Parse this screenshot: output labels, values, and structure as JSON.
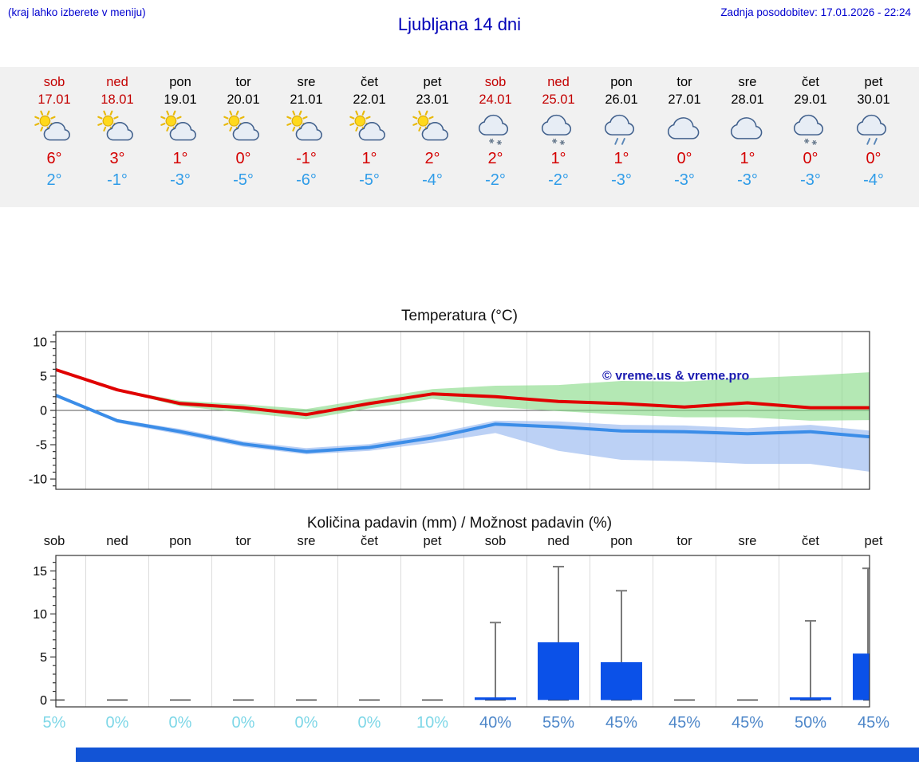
{
  "header": {
    "note": "(kraj lahko izberete v meniju)",
    "title": "Ljubljana 14 dni",
    "updated": "Zadnja posodobitev: 17.01.2026 - 22:24"
  },
  "colors": {
    "accent_blue": "#0000cf",
    "weekend_red": "#c30000",
    "high_red": "#d40000",
    "low_blue": "#2f9ce8",
    "bar_blue": "#0b51e8",
    "whisker_gray": "#7a7a7a",
    "percent_low": "#7ed7e7",
    "percent_high": "#4e87c9",
    "watermark_blue": "#1b1bb0",
    "footer_bar": "#1254d6",
    "max_band_green": "#82d882",
    "min_band_blue": "#8fb2ee"
  },
  "forecast_strip": {
    "days": [
      {
        "name": "sob",
        "date": "17.01",
        "weekend": true,
        "icon": "sun-cloud-icon",
        "high": "6°",
        "low": "2°"
      },
      {
        "name": "ned",
        "date": "18.01",
        "weekend": true,
        "icon": "sun-cloud-icon",
        "high": "3°",
        "low": "-1°"
      },
      {
        "name": "pon",
        "date": "19.01",
        "weekend": false,
        "icon": "sun-cloud-icon",
        "high": "1°",
        "low": "-3°"
      },
      {
        "name": "tor",
        "date": "20.01",
        "weekend": false,
        "icon": "sun-cloud-icon",
        "high": "0°",
        "low": "-5°"
      },
      {
        "name": "sre",
        "date": "21.01",
        "weekend": false,
        "icon": "sun-cloud-icon",
        "high": "-1°",
        "low": "-6°"
      },
      {
        "name": "čet",
        "date": "22.01",
        "weekend": false,
        "icon": "sun-cloud-icon",
        "high": "1°",
        "low": "-5°"
      },
      {
        "name": "pet",
        "date": "23.01",
        "weekend": false,
        "icon": "sun-cloud-icon",
        "high": "2°",
        "low": "-4°"
      },
      {
        "name": "sob",
        "date": "24.01",
        "weekend": true,
        "icon": "cloud-snow-icon",
        "high": "2°",
        "low": "-2°"
      },
      {
        "name": "ned",
        "date": "25.01",
        "weekend": true,
        "icon": "cloud-snow-icon",
        "high": "1°",
        "low": "-2°"
      },
      {
        "name": "pon",
        "date": "26.01",
        "weekend": false,
        "icon": "cloud-rain-icon",
        "high": "1°",
        "low": "-3°"
      },
      {
        "name": "tor",
        "date": "27.01",
        "weekend": false,
        "icon": "cloud-icon",
        "high": "0°",
        "low": "-3°"
      },
      {
        "name": "sre",
        "date": "28.01",
        "weekend": false,
        "icon": "cloud-icon",
        "high": "1°",
        "low": "-3°"
      },
      {
        "name": "čet",
        "date": "29.01",
        "weekend": false,
        "icon": "cloud-snow-icon",
        "high": "0°",
        "low": "-3°"
      },
      {
        "name": "pet",
        "date": "30.01",
        "weekend": false,
        "icon": "cloud-rain-icon",
        "high": "0°",
        "low": "-4°"
      }
    ]
  },
  "chart_data": [
    {
      "type": "line",
      "title": "Temperatura (°C)",
      "x_labels": [
        "sob",
        "ned",
        "pon",
        "tor",
        "sre",
        "čet",
        "pet",
        "sob",
        "ned",
        "pon",
        "tor",
        "sre",
        "čet",
        "pet"
      ],
      "ylim": [
        -11.5,
        11.5
      ],
      "yticks": [
        -10,
        -5,
        0,
        5,
        10
      ],
      "grid": "vertical-day-boundaries",
      "watermark": "© vreme.us & vreme.pro",
      "series": [
        {
          "name": "max temperature",
          "color": "#e00000",
          "values": [
            6,
            3,
            1,
            0.4,
            -0.6,
            1,
            2.4,
            2,
            1.3,
            1,
            0.5,
            1.1,
            0.4,
            0.4
          ]
        },
        {
          "name": "min temperature",
          "color": "#3b8de8",
          "values": [
            2.3,
            -1.5,
            -3.1,
            -4.9,
            -6,
            -5.4,
            -4,
            -2,
            -2.4,
            -3,
            -3.1,
            -3.4,
            -3.1,
            -3.9
          ]
        }
      ],
      "bands": [
        {
          "name": "max temperature range",
          "color": "#82d882",
          "upper": [
            6,
            3.1,
            1.4,
            0.9,
            0.2,
            1.7,
            3.1,
            3.6,
            3.7,
            4.3,
            4.2,
            4.7,
            5.1,
            5.6
          ],
          "lower": [
            6,
            2.9,
            0.6,
            -0.3,
            -1.3,
            0.3,
            1.7,
            0.5,
            -0.1,
            -0.6,
            -1,
            -1,
            -1.5,
            -1.4
          ]
        },
        {
          "name": "min temperature range",
          "color": "#8fb2ee",
          "upper": [
            2.3,
            -1.3,
            -2.7,
            -4.5,
            -5.5,
            -4.9,
            -3.4,
            -1.5,
            -1.6,
            -2.1,
            -2.2,
            -2.6,
            -2.1,
            -3
          ],
          "lower": [
            2.3,
            -1.8,
            -3.5,
            -5.3,
            -6.4,
            -5.9,
            -4.7,
            -3.3,
            -5.9,
            -7.2,
            -7.4,
            -7.8,
            -7.8,
            -9
          ]
        }
      ]
    },
    {
      "type": "bar",
      "title": "Količina padavin (mm) / Možnost padavin (%)",
      "x_labels": [
        "sob",
        "ned",
        "pon",
        "tor",
        "sre",
        "čet",
        "pet",
        "sob",
        "ned",
        "pon",
        "tor",
        "sre",
        "čet",
        "pet"
      ],
      "ylim": [
        -0.8,
        16.8
      ],
      "yticks": [
        0,
        5,
        10,
        15
      ],
      "ylabel": "",
      "values": [
        0,
        0,
        0,
        0,
        0,
        0,
        0,
        0.3,
        6.7,
        4.4,
        0,
        0,
        0.3,
        5.4
      ],
      "whisker_max": [
        0,
        0,
        0,
        0,
        0,
        0,
        0,
        9,
        15.5,
        12.7,
        0,
        0,
        9.2,
        15.3
      ],
      "percentages": [
        "5%",
        "0%",
        "0%",
        "0%",
        "0%",
        "0%",
        "10%",
        "40%",
        "55%",
        "45%",
        "45%",
        "45%",
        "50%",
        "45%"
      ],
      "percent_emphasis": [
        false,
        false,
        false,
        false,
        false,
        false,
        false,
        true,
        true,
        true,
        true,
        true,
        true,
        true
      ]
    }
  ]
}
